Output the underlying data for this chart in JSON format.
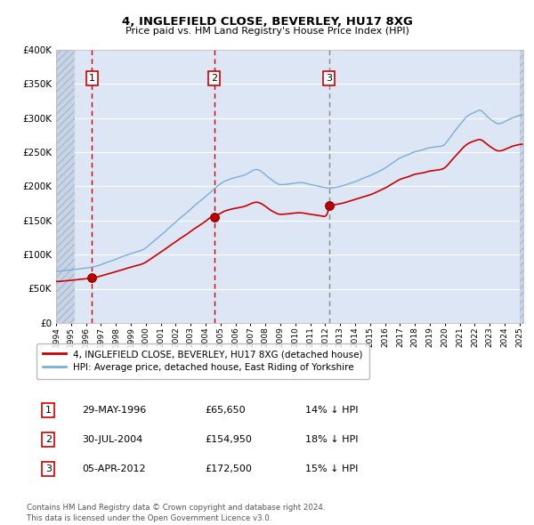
{
  "title": "4, INGLEFIELD CLOSE, BEVERLEY, HU17 8XG",
  "subtitle": "Price paid vs. HM Land Registry's House Price Index (HPI)",
  "sales": [
    {
      "date": "1996-05-29",
      "price": 65650,
      "label": "1"
    },
    {
      "date": "2004-07-30",
      "price": 154950,
      "label": "2"
    },
    {
      "date": "2012-04-05",
      "price": 172500,
      "label": "3"
    }
  ],
  "red_line_color": "#cc0000",
  "blue_line_color": "#7bafd4",
  "plot_bg_color": "#dce6f5",
  "ylim": [
    0,
    400000
  ],
  "yticks": [
    0,
    50000,
    100000,
    150000,
    200000,
    250000,
    300000,
    350000,
    400000
  ],
  "legend_entries": [
    "4, INGLEFIELD CLOSE, BEVERLEY, HU17 8XG (detached house)",
    "HPI: Average price, detached house, East Riding of Yorkshire"
  ],
  "table_rows": [
    [
      "1",
      "29-MAY-1996",
      "£65,650",
      "14% ↓ HPI"
    ],
    [
      "2",
      "30-JUL-2004",
      "£154,950",
      "18% ↓ HPI"
    ],
    [
      "3",
      "05-APR-2012",
      "£172,500",
      "15% ↓ HPI"
    ]
  ],
  "footer": "Contains HM Land Registry data © Crown copyright and database right 2024.\nThis data is licensed under the Open Government Licence v3.0."
}
